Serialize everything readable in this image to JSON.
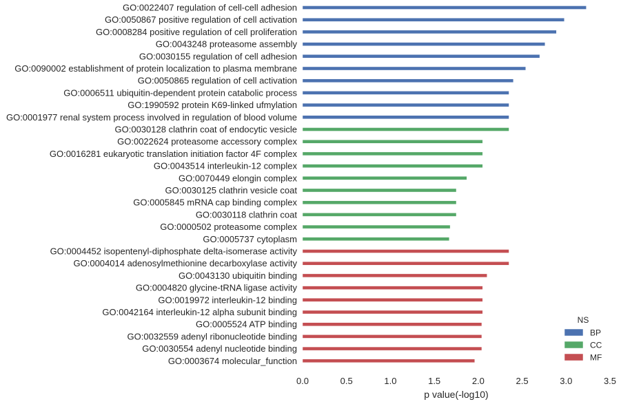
{
  "chart_data": {
    "type": "bar",
    "orientation": "horizontal",
    "xlabel": "p value(-log10)",
    "ylabel": "",
    "xlim": [
      0,
      3.5
    ],
    "xticks": [
      "0.0",
      "0.5",
      "1.0",
      "1.5",
      "2.0",
      "2.5",
      "3.0",
      "3.5"
    ],
    "grid": false,
    "legend": {
      "title": "NS",
      "placement": "lower-right",
      "entries": [
        {
          "key": "BP",
          "label": "BP",
          "color": "#4c72b0"
        },
        {
          "key": "CC",
          "label": "CC",
          "color": "#55a868"
        },
        {
          "key": "MF",
          "label": "MF",
          "color": "#c44e52"
        }
      ]
    },
    "categories": [
      {
        "label": "GO:0022407 regulation of cell-cell adhesion",
        "ns": "BP",
        "value": 3.23
      },
      {
        "label": "GO:0050867 positive regulation of cell activation",
        "ns": "BP",
        "value": 2.98
      },
      {
        "label": "GO:0008284 positive regulation of cell proliferation",
        "ns": "BP",
        "value": 2.89
      },
      {
        "label": "GO:0043248 proteasome assembly",
        "ns": "BP",
        "value": 2.76
      },
      {
        "label": "GO:0030155 regulation of cell adhesion",
        "ns": "BP",
        "value": 2.7
      },
      {
        "label": "GO:0090002 establishment of protein localization to plasma membrane",
        "ns": "BP",
        "value": 2.54
      },
      {
        "label": "GO:0050865 regulation of cell activation",
        "ns": "BP",
        "value": 2.4
      },
      {
        "label": "GO:0006511 ubiquitin-dependent protein catabolic process",
        "ns": "BP",
        "value": 2.35
      },
      {
        "label": "GO:1990592 protein K69-linked ufmylation",
        "ns": "BP",
        "value": 2.35
      },
      {
        "label": "GO:0001977 renal system process involved in regulation of blood volume",
        "ns": "BP",
        "value": 2.35
      },
      {
        "label": "GO:0030128 clathrin coat of endocytic vesicle",
        "ns": "CC",
        "value": 2.35
      },
      {
        "label": "GO:0022624 proteasome accessory complex",
        "ns": "CC",
        "value": 2.05
      },
      {
        "label": "GO:0016281 eukaryotic translation initiation factor 4F complex",
        "ns": "CC",
        "value": 2.05
      },
      {
        "label": "GO:0043514 interleukin-12 complex",
        "ns": "CC",
        "value": 2.05
      },
      {
        "label": "GO:0070449 elongin complex",
        "ns": "CC",
        "value": 1.87
      },
      {
        "label": "GO:0030125 clathrin vesicle coat",
        "ns": "CC",
        "value": 1.75
      },
      {
        "label": "GO:0005845 mRNA cap binding complex",
        "ns": "CC",
        "value": 1.75
      },
      {
        "label": "GO:0030118 clathrin coat",
        "ns": "CC",
        "value": 1.75
      },
      {
        "label": "GO:0000502 proteasome complex",
        "ns": "CC",
        "value": 1.68
      },
      {
        "label": "GO:0005737 cytoplasm",
        "ns": "CC",
        "value": 1.67
      },
      {
        "label": "GO:0004452 isopentenyl-diphosphate delta-isomerase activity",
        "ns": "MF",
        "value": 2.35
      },
      {
        "label": "GO:0004014 adenosylmethionine decarboxylase activity",
        "ns": "MF",
        "value": 2.35
      },
      {
        "label": "GO:0043130 ubiquitin binding",
        "ns": "MF",
        "value": 2.1
      },
      {
        "label": "GO:0004820 glycine-tRNA ligase activity",
        "ns": "MF",
        "value": 2.05
      },
      {
        "label": "GO:0019972 interleukin-12 binding",
        "ns": "MF",
        "value": 2.05
      },
      {
        "label": "GO:0042164 interleukin-12 alpha subunit binding",
        "ns": "MF",
        "value": 2.05
      },
      {
        "label": "GO:0005524 ATP binding",
        "ns": "MF",
        "value": 2.04
      },
      {
        "label": "GO:0032559 adenyl ribonucleotide binding",
        "ns": "MF",
        "value": 2.04
      },
      {
        "label": "GO:0030554 adenyl nucleotide binding",
        "ns": "MF",
        "value": 2.04
      },
      {
        "label": "GO:0003674 molecular_function",
        "ns": "MF",
        "value": 1.96
      }
    ]
  }
}
